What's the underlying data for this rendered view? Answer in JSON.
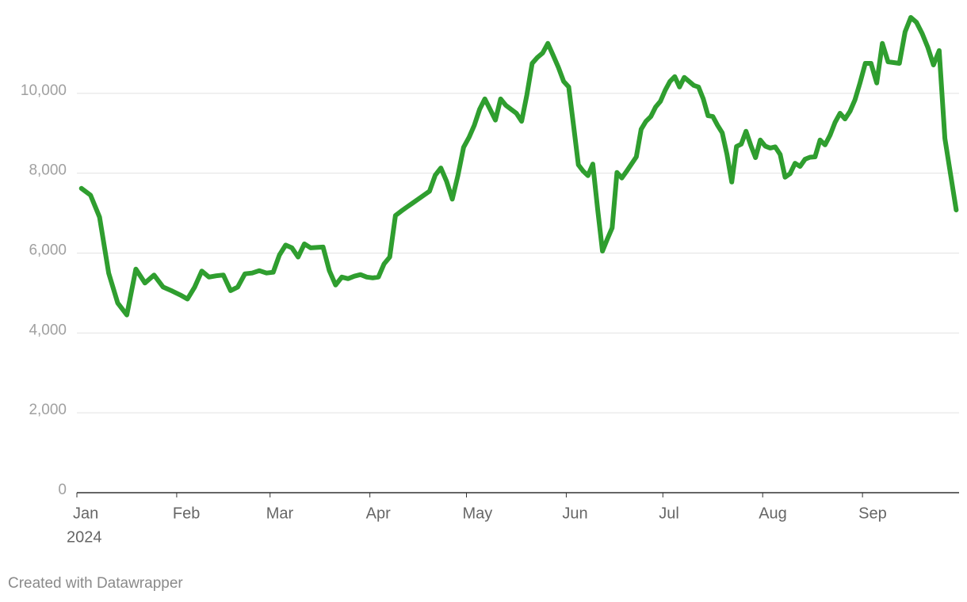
{
  "chart_data": {
    "type": "line",
    "x_year": "2024",
    "credit": "Created with Datawrapper",
    "color": "#2f9e2f",
    "grid": true,
    "xlim": [
      "2024-01",
      "2024-10"
    ],
    "xticks": [
      {
        "value": "2024-01",
        "label": "Jan"
      },
      {
        "value": "2024-02",
        "label": "Feb"
      },
      {
        "value": "2024-03",
        "label": "Mar"
      },
      {
        "value": "2024-04",
        "label": "Apr"
      },
      {
        "value": "2024-05",
        "label": "May"
      },
      {
        "value": "2024-06",
        "label": "Jun"
      },
      {
        "value": "2024-07",
        "label": "Jul"
      },
      {
        "value": "2024-08",
        "label": "Aug"
      },
      {
        "value": "2024-09",
        "label": "Sep"
      }
    ],
    "ylim": [
      0,
      12000
    ],
    "yticks": [
      0,
      {
        "value": 2000,
        "label": "2,000"
      },
      {
        "value": 4000,
        "label": "4,000"
      },
      {
        "value": 6000,
        "label": "6,000"
      },
      {
        "value": 8000,
        "label": "8,000"
      },
      {
        "value": 10000,
        "label": "10,000"
      }
    ],
    "x": [
      "2024-01",
      "2024-01",
      "2024-01",
      "2024-01",
      "2024-01",
      "2024-01",
      "2024-01",
      "2024-01",
      "2024-01",
      "2024-01",
      "2024-01",
      "2024-02",
      "2024-02",
      "2024-02",
      "2024-02",
      "2024-02",
      "2024-02",
      "2024-02",
      "2024-02",
      "2024-02",
      "2024-02",
      "2024-02",
      "2024-02",
      "2024-02",
      "2024-03",
      "2024-03",
      "2024-03",
      "2024-03",
      "2024-03",
      "2024-03",
      "2024-03",
      "2024-03",
      "2024-03",
      "2024-03",
      "2024-03",
      "2024-03",
      "2024-03",
      "2024-03",
      "2024-03",
      "2024-03",
      "2024-04",
      "2024-04",
      "2024-04",
      "2024-04",
      "2024-04",
      "2024-04",
      "2024-04",
      "2024-04",
      "2024-04",
      "2024-04",
      "2024-04",
      "2024-04",
      "2024-04",
      "2024-04",
      "2024-04",
      "2024-04",
      "2024-04",
      "2024-05",
      "2024-05",
      "2024-05",
      "2024-05",
      "2024-05",
      "2024-05",
      "2024-05",
      "2024-05",
      "2024-05",
      "2024-05",
      "2024-05",
      "2024-05",
      "2024-05",
      "2024-05",
      "2024-05",
      "2024-05",
      "2024-05",
      "2024-05",
      "2024-05",
      "2024-06",
      "2024-06",
      "2024-06",
      "2024-06",
      "2024-06",
      "2024-06",
      "2024-06",
      "2024-06",
      "2024-06",
      "2024-06",
      "2024-06",
      "2024-06",
      "2024-06",
      "2024-06",
      "2024-06",
      "2024-06",
      "2024-06",
      "2024-06",
      "2024-06",
      "2024-06",
      "2024-07",
      "2024-07",
      "2024-07",
      "2024-07",
      "2024-07",
      "2024-07",
      "2024-07",
      "2024-07",
      "2024-07",
      "2024-07",
      "2024-07",
      "2024-07",
      "2024-07",
      "2024-07",
      "2024-07",
      "2024-07",
      "2024-07",
      "2024-07",
      "2024-07",
      "2024-07",
      "2024-07",
      "2024-08",
      "2024-08",
      "2024-08",
      "2024-08",
      "2024-08",
      "2024-08",
      "2024-08",
      "2024-08",
      "2024-08",
      "2024-08",
      "2024-08",
      "2024-08",
      "2024-08",
      "2024-08",
      "2024-08",
      "2024-08",
      "2024-08",
      "2024-08",
      "2024-08",
      "2024-08",
      "2024-09",
      "2024-09",
      "2024-09",
      "2024-09",
      "2024-09",
      "2024-09",
      "2024-09",
      "2024-09",
      "2024-09",
      "2024-09",
      "2024-09",
      "2024-09",
      "2024-09",
      "2024-09",
      "2024-09",
      "2024-09",
      "2024-09"
    ],
    "values": [
      7620,
      7450,
      6900,
      5500,
      4750,
      4450,
      5600,
      5250,
      5450,
      5150,
      5050,
      4950,
      4850,
      5150,
      5550,
      5400,
      5430,
      5450,
      5060,
      5150,
      5480,
      5500,
      5560,
      5500,
      5520,
      5950,
      6200,
      6130,
      5900,
      6230,
      6130,
      6140,
      6150,
      5560,
      5200,
      5400,
      5360,
      5420,
      5460,
      5400,
      5380,
      5400,
      5730,
      5900,
      6940,
      7050,
      7150,
      7250,
      7350,
      7450,
      7550,
      7950,
      8130,
      7800,
      7350,
      7950,
      8650,
      8900,
      9200,
      9600,
      9860,
      9600,
      9330,
      9860,
      9700,
      9600,
      9500,
      9300,
      9960,
      10750,
      10900,
      11010,
      11250,
      10950,
      10650,
      10300,
      10160,
      9200,
      8210,
      8050,
      7940,
      8230,
      7100,
      6050,
      6350,
      6630,
      8020,
      7880,
      8050,
      8230,
      8410,
      9100,
      9300,
      9420,
      9660,
      9800,
      10080,
      10300,
      10420,
      10160,
      10400,
      10300,
      10200,
      10160,
      9860,
      9440,
      9420,
      9200,
      9010,
      8470,
      7780,
      8670,
      8730,
      9050,
      8700,
      8390,
      8830,
      8680,
      8630,
      8660,
      8470,
      7900,
      7990,
      8250,
      8170,
      8350,
      8400,
      8410,
      8830,
      8710,
      8950,
      9270,
      9500,
      9360,
      9550,
      9840,
      10260,
      10750,
      10750,
      10260,
      11250,
      10790,
      10770,
      10750,
      11540,
      11900,
      11780,
      11500,
      11150,
      10710,
      11070,
      8870,
      7980,
      7080
    ]
  }
}
